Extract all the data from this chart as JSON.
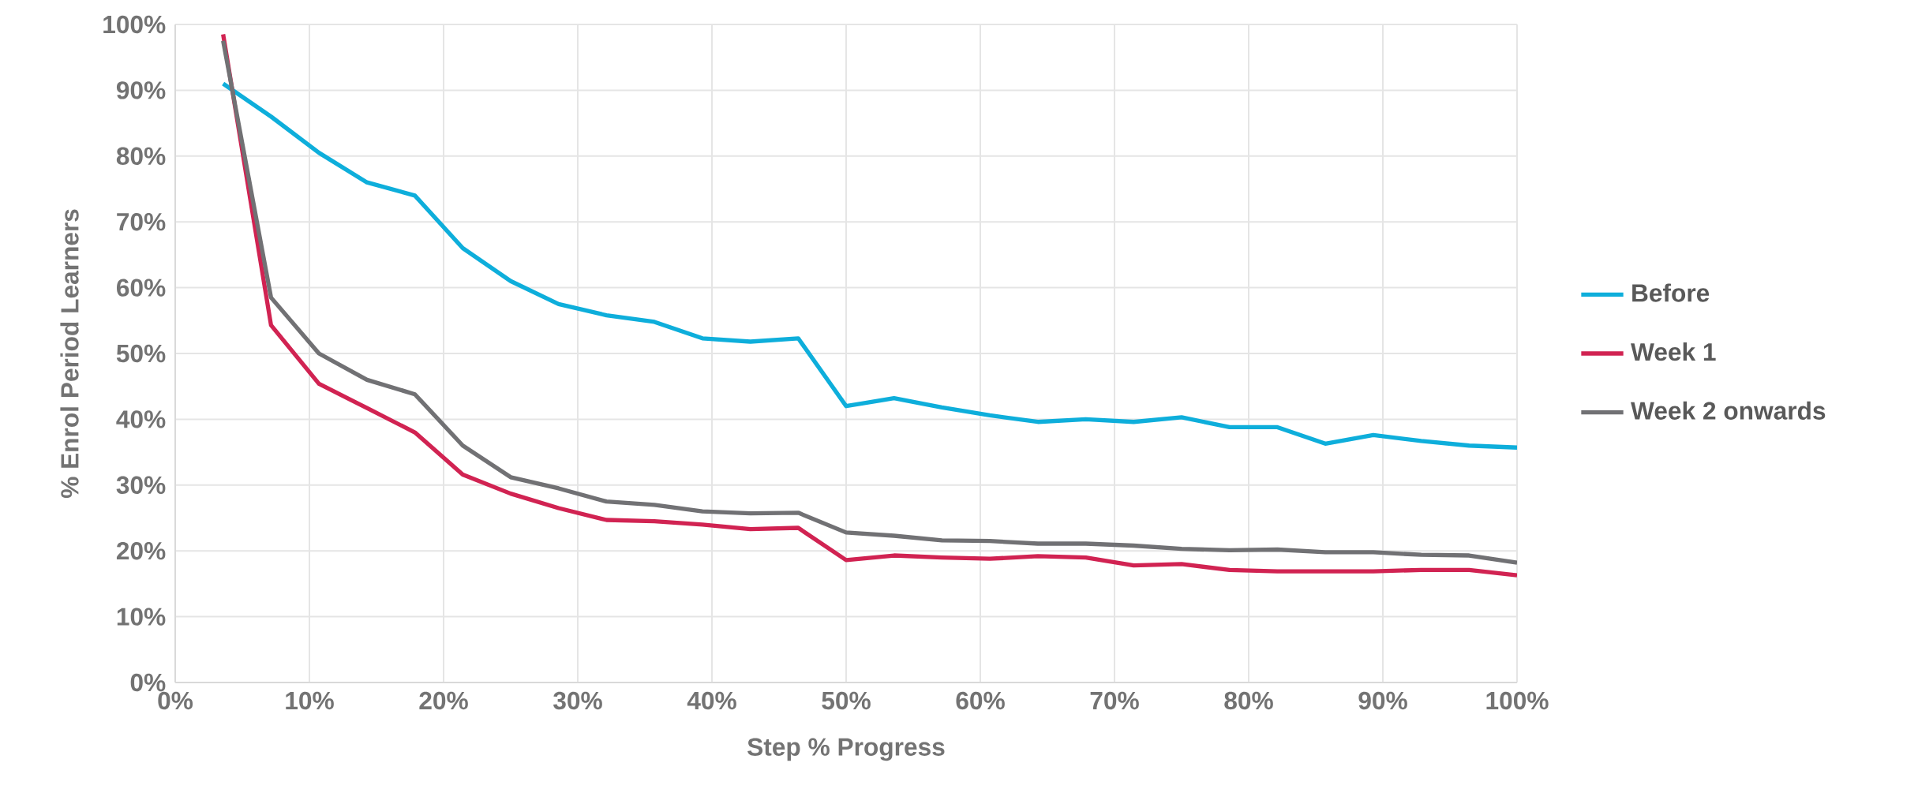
{
  "chart_data": {
    "type": "line",
    "xlabel": "Step % Progress",
    "ylabel": "% Enrol Period Learners",
    "x": [
      3.57,
      7.14,
      10.71,
      14.29,
      17.86,
      21.43,
      25,
      28.57,
      32.14,
      35.71,
      39.29,
      42.86,
      46.43,
      50,
      53.57,
      57.14,
      60.71,
      64.29,
      67.86,
      71.43,
      75,
      78.57,
      82.14,
      85.71,
      89.29,
      92.86,
      96.43,
      100
    ],
    "series": [
      {
        "name": "Before",
        "color": "#0eaedb",
        "values": [
          91,
          86,
          80.5,
          76,
          74,
          66,
          61,
          57.5,
          55.8,
          54.8,
          52.3,
          51.8,
          52.3,
          42,
          43.2,
          41.8,
          40.6,
          39.6,
          40,
          39.6,
          40.3,
          38.8,
          38.8,
          36.3,
          37.6,
          36.7,
          36,
          35.7
        ]
      },
      {
        "name": "Week 1",
        "color": "#d12352",
        "values": [
          98.5,
          54.3,
          45.4,
          41.7,
          38,
          31.6,
          28.7,
          26.5,
          24.7,
          24.5,
          24,
          23.3,
          23.5,
          18.6,
          19.3,
          19,
          18.8,
          19.2,
          19,
          17.8,
          18,
          17.1,
          16.9,
          16.9,
          16.9,
          17.1,
          17.1,
          16.3
        ]
      },
      {
        "name": "Week 2 onwards",
        "color": "#717174",
        "values": [
          97.5,
          58.5,
          50,
          46,
          43.8,
          36,
          31.2,
          29.5,
          27.5,
          27,
          26,
          25.7,
          25.8,
          22.8,
          22.3,
          21.6,
          21.5,
          21.1,
          21.1,
          20.8,
          20.3,
          20.1,
          20.2,
          19.8,
          19.8,
          19.4,
          19.3,
          18.2
        ]
      }
    ],
    "xlim": [
      0,
      100
    ],
    "xticks": [
      {
        "value": 0,
        "label": "0%"
      },
      {
        "value": 10,
        "label": "10%"
      },
      {
        "value": 20,
        "label": "20%"
      },
      {
        "value": 30,
        "label": "30%"
      },
      {
        "value": 40,
        "label": "40%"
      },
      {
        "value": 50,
        "label": "50%"
      },
      {
        "value": 60,
        "label": "60%"
      },
      {
        "value": 70,
        "label": "70%"
      },
      {
        "value": 80,
        "label": "80%"
      },
      {
        "value": 90,
        "label": "90%"
      },
      {
        "value": 100,
        "label": "100%"
      }
    ],
    "ylim": [
      0,
      100
    ],
    "yticks": [
      {
        "value": 0,
        "label": "0%"
      },
      {
        "value": 10,
        "label": "10%"
      },
      {
        "value": 20,
        "label": "20%"
      },
      {
        "value": 30,
        "label": "30%"
      },
      {
        "value": 40,
        "label": "40%"
      },
      {
        "value": 50,
        "label": "50%"
      },
      {
        "value": 60,
        "label": "60%"
      },
      {
        "value": 70,
        "label": "70%"
      },
      {
        "value": 80,
        "label": "80%"
      },
      {
        "value": 90,
        "label": "90%"
      },
      {
        "value": 100,
        "label": "100%"
      }
    ],
    "grid": true,
    "legend": "right",
    "marker": "none",
    "line_style": "solid"
  }
}
